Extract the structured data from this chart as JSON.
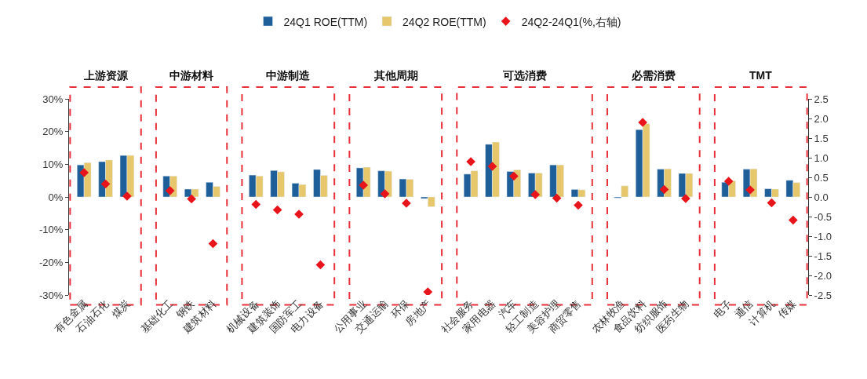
{
  "chart_data": {
    "type": "bar",
    "categories": [
      "有色金属",
      "石油石化",
      "煤炭",
      null,
      "基础化工",
      "钢铁",
      "建筑材料",
      null,
      "机械设备",
      "建筑装饰",
      "国防军工",
      "电力设备",
      null,
      "公用事业",
      "交通运输",
      "环保",
      "房地产",
      null,
      "社会服务",
      "家用电器",
      "汽车",
      "轻工制造",
      "美容护理",
      "商贸零售",
      null,
      "农林牧渔",
      "食品饮料",
      "纺织服饰",
      "医药生物",
      null,
      "电子",
      "通信",
      "计算机",
      "传媒"
    ],
    "series": [
      {
        "name": "24Q1 ROE(TTM)",
        "type": "bar",
        "color": "#1f5f99",
        "values": [
          9.8,
          10.8,
          12.7,
          null,
          6.4,
          2.4,
          4.5,
          null,
          6.7,
          8.1,
          4.2,
          8.4,
          null,
          8.9,
          8.0,
          5.5,
          -0.5,
          null,
          7.0,
          16.1,
          7.8,
          7.3,
          9.8,
          2.3,
          null,
          -0.3,
          20.6,
          8.5,
          7.2,
          null,
          4.5,
          8.5,
          2.5,
          5.1
        ]
      },
      {
        "name": "24Q2 ROE(TTM)",
        "type": "bar",
        "color": "#e6c76b",
        "values": [
          10.5,
          11.3,
          12.7,
          null,
          6.4,
          2.4,
          3.2,
          null,
          6.4,
          7.7,
          3.8,
          6.6,
          null,
          9.1,
          7.9,
          5.4,
          -3.0,
          null,
          8.0,
          16.8,
          8.3,
          7.3,
          9.8,
          2.2,
          null,
          3.4,
          22.4,
          8.6,
          7.2,
          null,
          4.9,
          8.6,
          2.4,
          4.4
        ]
      },
      {
        "name": "24Q2-24Q1(%,右轴)",
        "type": "scatter",
        "axis": "y2",
        "color": "#e8141b",
        "values": [
          0.62,
          0.33,
          0.02,
          null,
          0.16,
          -0.05,
          -1.19,
          null,
          -0.19,
          -0.33,
          -0.44,
          -1.73,
          null,
          0.3,
          0.08,
          -0.16,
          -2.42,
          null,
          0.9,
          0.78,
          0.53,
          0.06,
          -0.03,
          -0.21,
          null,
          null,
          1.9,
          0.19,
          -0.04,
          null,
          0.4,
          0.18,
          -0.15,
          -0.59
        ]
      }
    ],
    "annotations": [
      "上游资源",
      "中游材料",
      "中游制造",
      "其他周期",
      "可选消费",
      "必需消费",
      "TMT"
    ],
    "ylim": [
      -30,
      30
    ],
    "yticks": [
      {
        "value": 30,
        "label": "30%"
      },
      {
        "value": 20,
        "label": "20%"
      },
      {
        "value": 10,
        "label": "10%"
      },
      {
        "value": 0,
        "label": "0%"
      },
      {
        "value": -10,
        "label": "-10%"
      },
      {
        "value": -20,
        "label": "-20%"
      },
      {
        "value": -30,
        "label": "-30%"
      }
    ],
    "y2lim": [
      -2.5,
      2.5
    ],
    "y2ticks": [
      2.5,
      {
        "value": 2,
        "label": "2.0"
      },
      1.5,
      {
        "value": 1,
        "label": "1.0"
      },
      0.5,
      {
        "value": 0,
        "label": "0.0"
      },
      -0.5,
      {
        "value": -1,
        "label": "-1.0"
      },
      -1.5,
      {
        "value": -2,
        "label": "-2.0"
      },
      -2.5
    ],
    "marker": "diamond",
    "legend": "top",
    "grid": false
  }
}
